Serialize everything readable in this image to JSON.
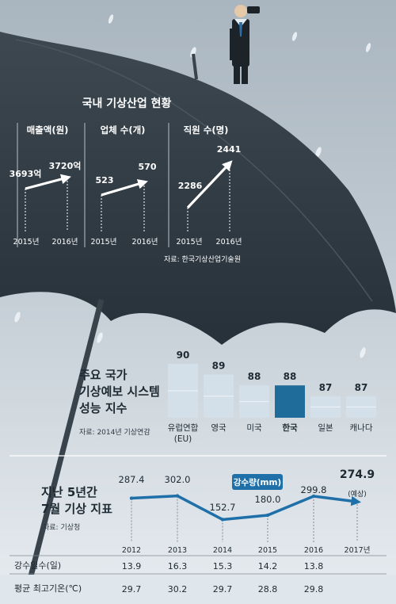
{
  "industry": {
    "title": "국내 기상산업 현황",
    "source": "자료: 한국기상산업기술원",
    "panels": [
      {
        "title": "매출액(원)",
        "values": [
          "3693억",
          "3720억"
        ],
        "years": [
          "2015년",
          "2016년"
        ]
      },
      {
        "title": "업체 수(개)",
        "values": [
          "523",
          "570"
        ],
        "years": [
          "2015년",
          "2016년"
        ]
      },
      {
        "title": "직원 수(명)",
        "values": [
          "2286",
          "2441"
        ],
        "years": [
          "2015년",
          "2016년"
        ]
      }
    ]
  },
  "forecast": {
    "title_lines": [
      "주요 국가",
      "기상예보 시스템",
      "성능 지수"
    ],
    "source": "자료: 2014년 기상연감"
  },
  "july": {
    "title_lines": [
      "지난 5년간",
      "7월 기상 지표"
    ],
    "source": "자료: 기상청",
    "legend_badge": "강수량(mm)",
    "forecast_note": "(예상)",
    "row_labels": [
      "강수일수(일)",
      "평균 최고기온(℃)"
    ],
    "rain_days": [
      "13.9",
      "16.3",
      "15.3",
      "14.2",
      "13.8",
      ""
    ],
    "max_temp": [
      "29.7",
      "30.2",
      "29.7",
      "28.8",
      "29.8",
      ""
    ]
  },
  "chart_data": [
    {
      "type": "line",
      "title": "매출액(원)",
      "x": [
        "2015년",
        "2016년"
      ],
      "series": [
        {
          "values": [
            3693,
            3720
          ]
        }
      ],
      "unit": "억"
    },
    {
      "type": "line",
      "title": "업체 수(개)",
      "x": [
        "2015년",
        "2016년"
      ],
      "series": [
        {
          "values": [
            523,
            570
          ]
        }
      ]
    },
    {
      "type": "line",
      "title": "직원 수(명)",
      "x": [
        "2015년",
        "2016년"
      ],
      "series": [
        {
          "values": [
            2286,
            2441
          ]
        }
      ]
    },
    {
      "type": "bar",
      "title": "주요 국가 기상예보 시스템 성능 지수",
      "categories": [
        "유럽연합(EU)",
        "영국",
        "미국",
        "한국",
        "일본",
        "캐나다"
      ],
      "values": [
        90,
        89,
        88,
        88,
        87,
        87
      ],
      "highlight": "한국",
      "colors": {
        "normal": "#d3e0ea",
        "highlight": "#1f6b9a"
      }
    },
    {
      "type": "line",
      "title": "지난 5년간 7월 기상 지표",
      "x": [
        "2012",
        "2013",
        "2014",
        "2015",
        "2016",
        "2017년"
      ],
      "series": [
        {
          "name": "강수량(mm)",
          "values": [
            "287.4",
            "302.0",
            "152.7",
            "180.0",
            "299.8",
            "274.9"
          ]
        }
      ],
      "color": "#1f6fa8"
    }
  ]
}
